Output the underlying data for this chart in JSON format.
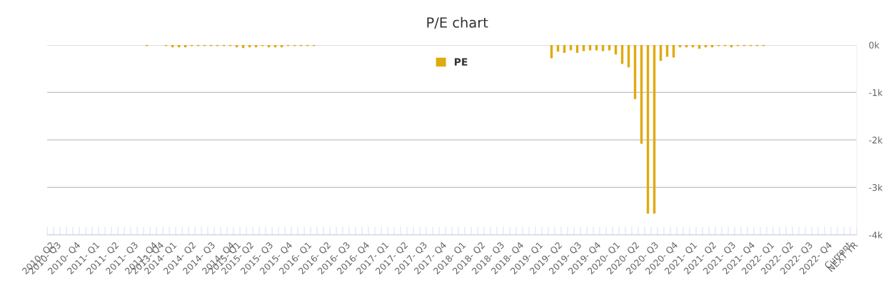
{
  "chart_data": {
    "type": "bar",
    "title": "P/E chart",
    "categories": [
      "2010- Q2",
      "2010- Q3",
      null,
      null,
      "2010- Q4",
      null,
      null,
      "2011- Q1",
      null,
      null,
      "2011- Q2",
      null,
      null,
      "2011- Q3",
      null,
      null,
      "2011- Q4",
      "2013- Q4",
      null,
      "2014- Q1",
      null,
      null,
      "2014- Q2",
      null,
      null,
      "2014- Q3",
      null,
      null,
      "2014- Q4",
      "2015- Q1",
      null,
      "2015- Q2",
      null,
      null,
      "2015- Q3",
      null,
      null,
      "2015- Q4",
      null,
      null,
      "2016- Q1",
      null,
      null,
      "2016- Q2",
      null,
      null,
      "2016- Q3",
      null,
      null,
      "2016- Q4",
      null,
      null,
      "2017- Q1",
      null,
      null,
      "2017- Q2",
      null,
      null,
      "2017- Q3",
      null,
      null,
      "2017- Q4",
      null,
      null,
      "2018- Q1",
      null,
      null,
      "2018- Q2",
      null,
      null,
      "2018- Q3",
      null,
      null,
      "2018- Q4",
      null,
      null,
      "2019- Q1",
      null,
      null,
      "2019- Q2",
      null,
      null,
      "2019- Q3",
      null,
      null,
      "2019- Q4",
      null,
      null,
      "2020- Q1",
      null,
      null,
      "2020- Q2",
      null,
      null,
      "2020- Q3",
      null,
      null,
      "2020- Q4",
      null,
      null,
      "2021- Q1",
      null,
      null,
      "2021- Q2",
      null,
      null,
      "2021- Q3",
      null,
      null,
      "2021- Q4",
      null,
      null,
      "2022- Q1",
      null,
      null,
      "2022- Q2",
      null,
      null,
      "2022- Q3",
      null,
      null,
      "2022- Q4",
      null,
      null,
      "Current",
      "NEXT YR"
    ],
    "series": [
      {
        "name": "PE",
        "color": "#e0aa0f",
        "values": [
          null,
          null,
          null,
          null,
          null,
          null,
          null,
          null,
          null,
          null,
          null,
          null,
          null,
          null,
          null,
          -25,
          null,
          null,
          -25,
          -50,
          -50,
          -50,
          -25,
          -25,
          -25,
          -25,
          -25,
          -25,
          -25,
          -50,
          -65,
          -50,
          -50,
          -25,
          -50,
          -50,
          -50,
          -25,
          -25,
          -25,
          -25,
          -25,
          null,
          null,
          null,
          null,
          null,
          null,
          null,
          null,
          null,
          null,
          null,
          null,
          null,
          null,
          null,
          null,
          null,
          null,
          null,
          null,
          null,
          null,
          null,
          null,
          null,
          null,
          null,
          null,
          null,
          null,
          null,
          null,
          null,
          null,
          null,
          null,
          -280,
          -140,
          -165,
          -115,
          -165,
          -130,
          -115,
          -115,
          -130,
          -115,
          -200,
          -400,
          -470,
          -1140,
          -2080,
          -3550,
          -3550,
          -335,
          -250,
          -265,
          -50,
          -50,
          -50,
          -80,
          -50,
          -50,
          -25,
          -25,
          -50,
          -25,
          -25,
          -25,
          -25,
          -25,
          null,
          null,
          null,
          null,
          null,
          null,
          null,
          null,
          null,
          null,
          null,
          null,
          null,
          null
        ]
      }
    ],
    "ylim": [
      -4000,
      0
    ],
    "yticks": [
      {
        "value": 0,
        "label": "0k"
      },
      {
        "value": -1000,
        "label": "-1k"
      },
      {
        "value": -2000,
        "label": "-2k"
      },
      {
        "value": -3000,
        "label": "-3k"
      },
      {
        "value": -4000,
        "label": "-4k"
      }
    ],
    "grid": "y",
    "legend": "top"
  }
}
